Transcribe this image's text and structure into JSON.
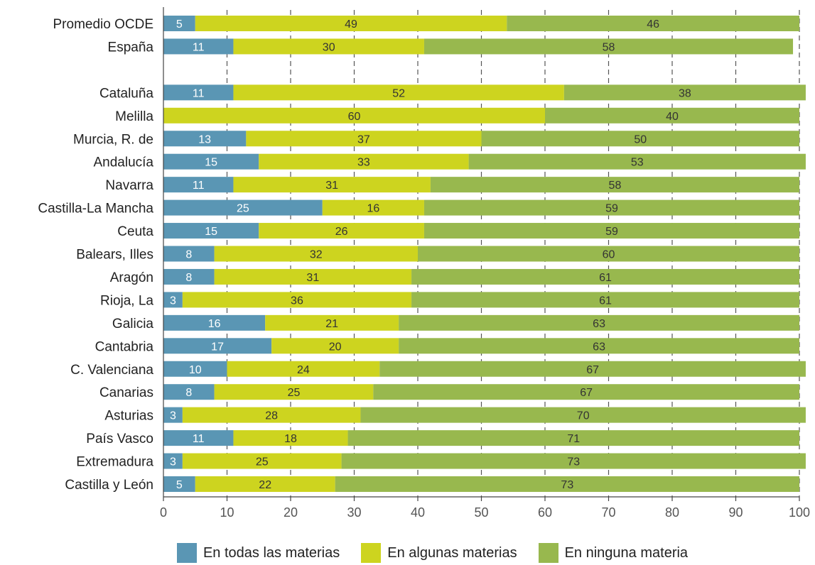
{
  "chart_data": {
    "type": "bar",
    "orientation": "horizontal",
    "stacked": true,
    "categories": [
      "Promedio OCDE",
      "España",
      "Cataluña",
      "Melilla",
      "Murcia, R. de",
      "Andalucía",
      "Navarra",
      "Castilla-La Mancha",
      "Ceuta",
      "Balears, Illes",
      "Aragón",
      "Rioja, La",
      "Galicia",
      "Cantabria",
      "C. Valenciana",
      "Canarias",
      "Asturias",
      "País Vasco",
      "Extremadura",
      "Castilla y León"
    ],
    "gap_after_index": 1,
    "series": [
      {
        "name": "En todas las materias",
        "color": "#5a96b4",
        "values": [
          5,
          11,
          11,
          0,
          13,
          15,
          11,
          25,
          15,
          8,
          8,
          3,
          16,
          17,
          10,
          8,
          3,
          11,
          3,
          5
        ],
        "label_color": "#ffffff"
      },
      {
        "name": "En algunas materias",
        "color": "#cdd41f",
        "values": [
          49,
          30,
          52,
          60,
          37,
          33,
          31,
          16,
          26,
          32,
          31,
          36,
          21,
          20,
          24,
          25,
          28,
          18,
          25,
          22
        ],
        "label_color": "#333333"
      },
      {
        "name": "En ninguna materia",
        "color": "#98b84e",
        "values": [
          46,
          58,
          38,
          40,
          50,
          53,
          58,
          59,
          59,
          60,
          61,
          61,
          63,
          63,
          67,
          67,
          70,
          71,
          73,
          73
        ],
        "label_color": "#333333"
      }
    ],
    "xlim": [
      0,
      100
    ],
    "xticks": [
      0,
      10,
      20,
      30,
      40,
      50,
      60,
      70,
      80,
      90,
      100
    ],
    "grid": "vertical-dashed",
    "legend_position": "bottom",
    "title": "",
    "xlabel": "",
    "ylabel": ""
  }
}
